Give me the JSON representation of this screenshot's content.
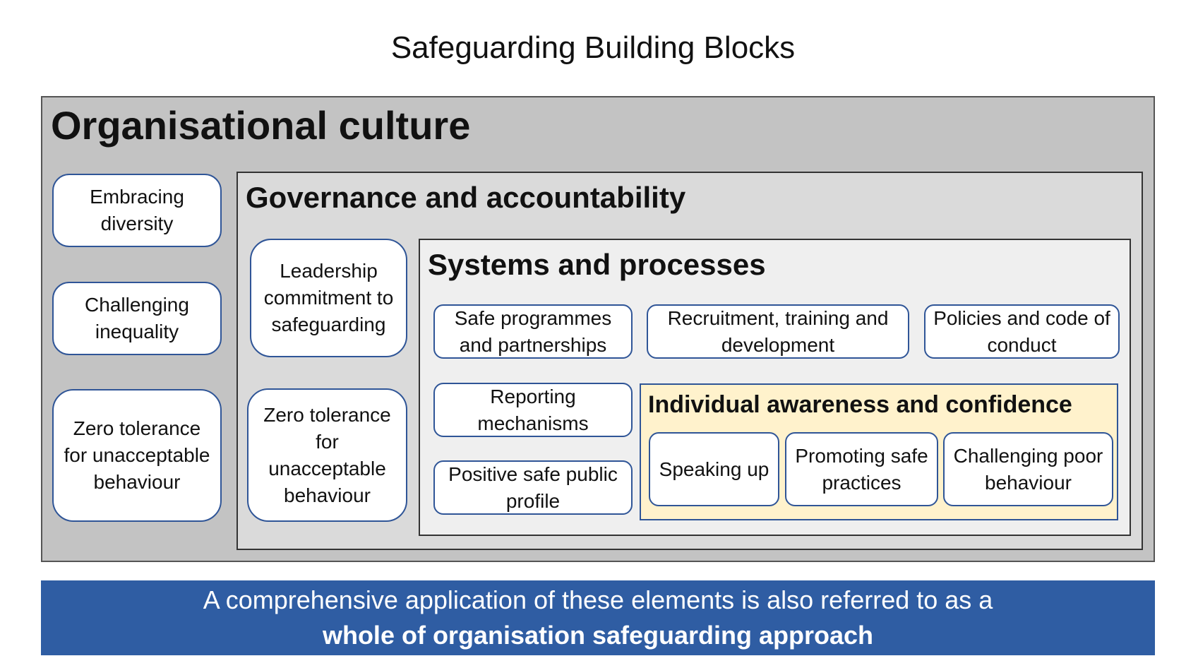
{
  "title": "Safeguarding Building Blocks",
  "organisational_culture": {
    "heading": "Organisational culture",
    "items": [
      "Embracing diversity",
      "Challenging inequality",
      "Zero tolerance for unacceptable behaviour"
    ]
  },
  "governance": {
    "heading": "Governance and accountability",
    "items": [
      "Leadership commitment to safeguarding",
      "Zero tolerance for unacceptable behaviour"
    ]
  },
  "systems": {
    "heading": "Systems and processes",
    "items": [
      "Safe programmes and partnerships",
      "Recruitment, training and development",
      "Policies and code of conduct",
      "Reporting mechanisms",
      "Positive safe public profile"
    ]
  },
  "individual": {
    "heading": "Individual awareness and confidence",
    "items": [
      "Speaking up",
      "Promoting safe practices",
      "Challenging poor behaviour"
    ]
  },
  "banner": {
    "line1": "A comprehensive application of these elements is also referred to as a",
    "line2": "whole of organisation safeguarding approach"
  },
  "colors": {
    "box_border": "#2f5597",
    "banner_bg": "#2f5da3",
    "individual_bg": "#fff2cc"
  }
}
